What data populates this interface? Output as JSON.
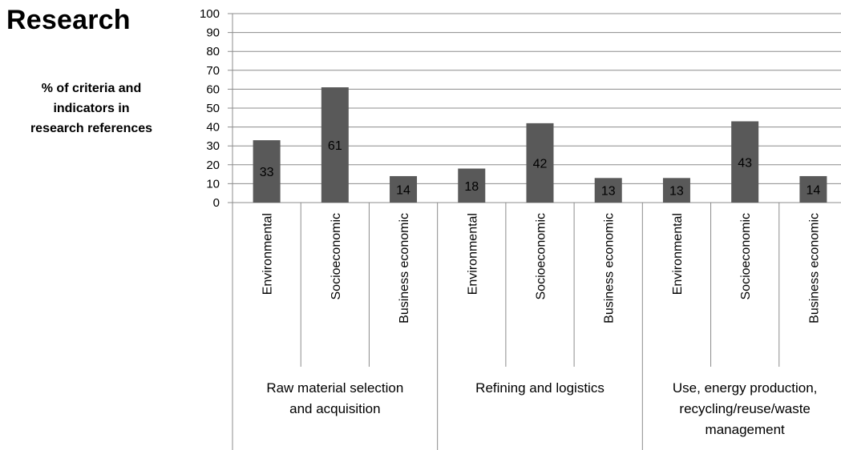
{
  "page": {
    "title": "Research",
    "ylabel_lines": [
      "% of criteria and",
      "indicators in",
      "research references"
    ]
  },
  "chart_data": {
    "type": "bar",
    "title": "Research",
    "ylabel": "% of criteria and indicators in research references",
    "ylim": [
      0,
      100
    ],
    "ytick_step": 10,
    "grid": true,
    "bar_color": "#595959",
    "groups": [
      {
        "label": "Raw material selection and acquisition",
        "label_lines": [
          "Raw material selection",
          "and acquisition"
        ],
        "categories": [
          "Environmental",
          "Socioeconomic",
          "Business economic"
        ],
        "values": [
          33,
          61,
          14
        ]
      },
      {
        "label": "Refining and logistics",
        "label_lines": [
          "Refining and logistics"
        ],
        "categories": [
          "Environmental",
          "Socioeconomic",
          "Business economic"
        ],
        "values": [
          18,
          42,
          13
        ]
      },
      {
        "label": "Use, energy production, recycling/reuse/waste management",
        "label_lines": [
          "Use, energy production,",
          "recycling/reuse/waste",
          "management"
        ],
        "categories": [
          "Environmental",
          "Socioeconomic",
          "Business economic"
        ],
        "values": [
          13,
          43,
          14
        ]
      }
    ]
  }
}
